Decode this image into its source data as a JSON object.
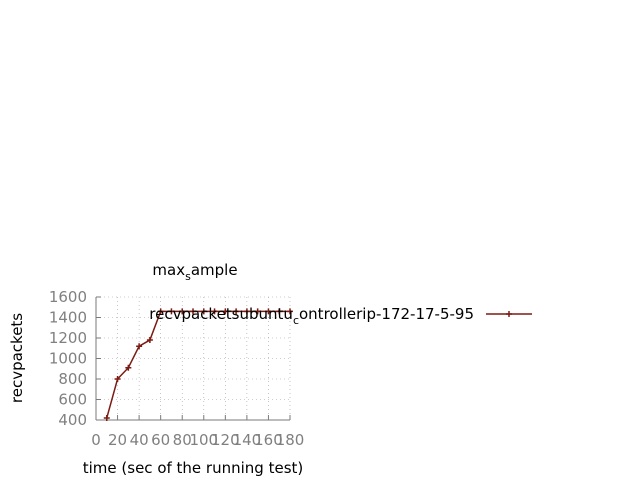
{
  "chart_data": {
    "type": "line",
    "title_main": "max",
    "title_sub": "s",
    "title_tail": "ample",
    "xlabel": "time (sec of the running test)",
    "ylabel": "recvpackets",
    "xlim": [
      0,
      180
    ],
    "ylim": [
      400,
      1600
    ],
    "xticks": [
      0,
      20,
      40,
      60,
      80,
      100,
      120,
      140,
      160,
      180
    ],
    "yticks": [
      400,
      600,
      800,
      1000,
      1200,
      1400,
      1600
    ],
    "grid": true,
    "legend_position": "top-right",
    "legend": {
      "main": "recvpacketsubuntu",
      "sub": "c",
      "tail": "ontrollerip-172-17-5-95"
    },
    "series": [
      {
        "color": "#7b1b12",
        "x": [
          10,
          20,
          30,
          40,
          50,
          60,
          70,
          80,
          90,
          100,
          110,
          120,
          130,
          140,
          150,
          160,
          170,
          180
        ],
        "y": [
          420,
          800,
          910,
          1120,
          1180,
          1460,
          1460,
          1460,
          1460,
          1460,
          1460,
          1460,
          1460,
          1460,
          1460,
          1460,
          1460,
          1460
        ]
      }
    ]
  }
}
